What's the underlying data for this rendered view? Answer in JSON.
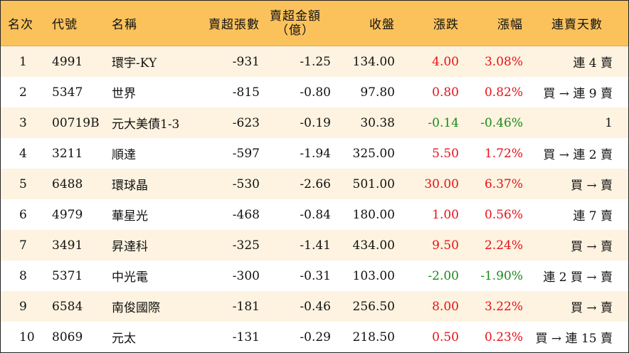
{
  "headers": {
    "rank": "名次",
    "code": "代號",
    "name": "名稱",
    "net_sell_lots": "賣超張數",
    "net_sell_amount_line1": "賣超金額",
    "net_sell_amount_line2": "（億）",
    "close": "收盤",
    "change": "漲跌",
    "change_pct": "漲幅",
    "streak": "連賣天數"
  },
  "rows": [
    {
      "rank": "1",
      "code": "4991",
      "name": "環宇-KY",
      "lots": "-931",
      "amount": "-1.25",
      "close": "134.00",
      "change": "4.00",
      "pct": "3.08%",
      "dir": "up",
      "streak": "連 4 賣"
    },
    {
      "rank": "2",
      "code": "5347",
      "name": "世界",
      "lots": "-815",
      "amount": "-0.80",
      "close": "97.80",
      "change": "0.80",
      "pct": "0.82%",
      "dir": "up",
      "streak": "買 → 連 9 賣"
    },
    {
      "rank": "3",
      "code": "00719B",
      "name": "元大美債1-3",
      "lots": "-623",
      "amount": "-0.19",
      "close": "30.38",
      "change": "-0.14",
      "pct": "-0.46%",
      "dir": "down",
      "streak": "1"
    },
    {
      "rank": "4",
      "code": "3211",
      "name": "順達",
      "lots": "-597",
      "amount": "-1.94",
      "close": "325.00",
      "change": "5.50",
      "pct": "1.72%",
      "dir": "up",
      "streak": "買 → 連 2 賣"
    },
    {
      "rank": "5",
      "code": "6488",
      "name": "環球晶",
      "lots": "-530",
      "amount": "-2.66",
      "close": "501.00",
      "change": "30.00",
      "pct": "6.37%",
      "dir": "up",
      "streak": "買 → 賣"
    },
    {
      "rank": "6",
      "code": "4979",
      "name": "華星光",
      "lots": "-468",
      "amount": "-0.84",
      "close": "180.00",
      "change": "1.00",
      "pct": "0.56%",
      "dir": "up",
      "streak": "連 7 賣"
    },
    {
      "rank": "7",
      "code": "3491",
      "name": "昇達科",
      "lots": "-325",
      "amount": "-1.41",
      "close": "434.00",
      "change": "9.50",
      "pct": "2.24%",
      "dir": "up",
      "streak": "買 → 賣"
    },
    {
      "rank": "8",
      "code": "5371",
      "name": "中光電",
      "lots": "-300",
      "amount": "-0.31",
      "close": "103.00",
      "change": "-2.00",
      "pct": "-1.90%",
      "dir": "down",
      "streak": "連 2 買 → 賣"
    },
    {
      "rank": "9",
      "code": "6584",
      "name": "南俊國際",
      "lots": "-181",
      "amount": "-0.46",
      "close": "256.50",
      "change": "8.00",
      "pct": "3.22%",
      "dir": "up",
      "streak": "買 → 賣"
    },
    {
      "rank": "10",
      "code": "8069",
      "name": "元太",
      "lots": "-131",
      "amount": "-0.29",
      "close": "218.50",
      "change": "0.50",
      "pct": "0.23%",
      "dir": "up",
      "streak": "買 → 連 15 賣"
    }
  ],
  "colors": {
    "header_bg": "#FBC25C",
    "odd_row_bg": "#FDF3E0",
    "up": "#E8101A",
    "down": "#1A8A1A"
  }
}
